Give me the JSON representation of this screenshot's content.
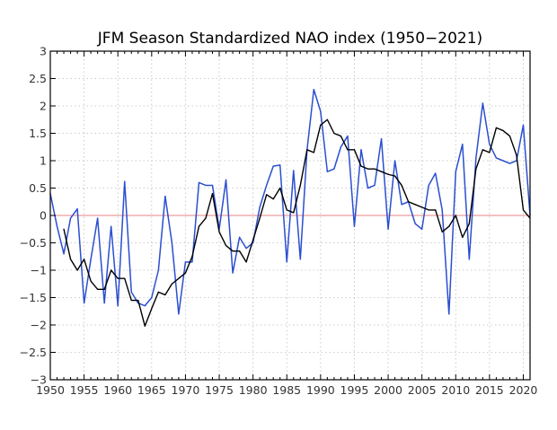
{
  "chart_data": {
    "type": "line",
    "title": "JFM Season Standardized NAO index (1950−2021)",
    "xlabel": "",
    "ylabel": "",
    "xlim": [
      1950,
      2021
    ],
    "ylim": [
      -3,
      3
    ],
    "grid": true,
    "x_ticks": [
      "1950",
      "1955",
      "1960",
      "1965",
      "1970",
      "1975",
      "1980",
      "1985",
      "1990",
      "1995",
      "2000",
      "2005",
      "2010",
      "2015",
      "2020"
    ],
    "y_ticks": [
      "3",
      "2.5",
      "2",
      "1.5",
      "1",
      "0.5",
      "0",
      "-0.5",
      "-1",
      "-1.5",
      "-2",
      "-2.5",
      "-3"
    ],
    "zero_line_color": "#e88080",
    "series": [
      {
        "name": "",
        "color": "#2a4fd0",
        "x": [
          1950,
          1951,
          1952,
          1953,
          1954,
          1955,
          1956,
          1957,
          1958,
          1959,
          1960,
          1961,
          1962,
          1963,
          1964,
          1965,
          1966,
          1967,
          1968,
          1969,
          1970,
          1971,
          1972,
          1973,
          1974,
          1975,
          1976,
          1977,
          1978,
          1979,
          1980,
          1981,
          1982,
          1983,
          1984,
          1985,
          1986,
          1987,
          1988,
          1989,
          1990,
          1991,
          1992,
          1993,
          1994,
          1995,
          1996,
          1997,
          1998,
          1999,
          2000,
          2001,
          2002,
          2003,
          2004,
          2005,
          2006,
          2007,
          2008,
          2009,
          2010,
          2011,
          2012,
          2013,
          2014,
          2015,
          2016,
          2017,
          2018,
          2019,
          2020,
          2021
        ],
        "values": [
          0.4,
          -0.2,
          -0.7,
          -0.05,
          0.12,
          -1.6,
          -0.8,
          -0.05,
          -1.6,
          -0.2,
          -1.65,
          0.62,
          -1.4,
          -1.6,
          -1.65,
          -1.5,
          -1.0,
          0.35,
          -0.5,
          -1.8,
          -0.85,
          -0.85,
          0.6,
          0.55,
          0.55,
          -0.25,
          0.65,
          -1.05,
          -0.4,
          -0.6,
          -0.5,
          0.15,
          0.55,
          0.9,
          0.92,
          -0.85,
          0.82,
          -0.8,
          1.2,
          2.3,
          1.9,
          0.8,
          0.85,
          1.25,
          1.45,
          -0.2,
          1.2,
          0.5,
          0.55,
          1.4,
          -0.25,
          1.0,
          0.2,
          0.25,
          -0.15,
          -0.25,
          0.55,
          0.77,
          0.1,
          -1.8,
          0.8,
          1.3,
          -0.8,
          1.05,
          2.05,
          1.3,
          1.05,
          1.0,
          0.95,
          1.0,
          1.65,
          0.0
        ]
      },
      {
        "name": "",
        "color": "#000000",
        "x": [
          1952,
          1953,
          1954,
          1955,
          1956,
          1957,
          1958,
          1959,
          1960,
          1961,
          1962,
          1963,
          1964,
          1965,
          1966,
          1967,
          1968,
          1969,
          1970,
          1971,
          1972,
          1973,
          1974,
          1975,
          1976,
          1977,
          1978,
          1979,
          1980,
          1981,
          1982,
          1983,
          1984,
          1985,
          1986,
          1987,
          1988,
          1989,
          1990,
          1991,
          1992,
          1993,
          1994,
          1995,
          1996,
          1997,
          1998,
          1999,
          2000,
          2001,
          2002,
          2003,
          2004,
          2005,
          2006,
          2007,
          2008,
          2009,
          2010,
          2011,
          2012,
          2013,
          2014,
          2015,
          2016,
          2017,
          2018,
          2019,
          2020,
          2021
        ],
        "values": [
          -0.25,
          -0.8,
          -1.0,
          -0.8,
          -1.2,
          -1.35,
          -1.35,
          -1.0,
          -1.15,
          -1.15,
          -1.55,
          -1.55,
          -2.02,
          -1.7,
          -1.4,
          -1.45,
          -1.25,
          -1.15,
          -1.05,
          -0.75,
          -0.2,
          -0.05,
          0.4,
          -0.3,
          -0.55,
          -0.65,
          -0.65,
          -0.85,
          -0.45,
          -0.05,
          0.38,
          0.3,
          0.5,
          0.1,
          0.05,
          0.55,
          1.2,
          1.15,
          1.65,
          1.75,
          1.5,
          1.45,
          1.2,
          1.2,
          0.9,
          0.85,
          0.85,
          0.8,
          0.75,
          0.72,
          0.55,
          0.25,
          0.2,
          0.15,
          0.1,
          0.1,
          -0.3,
          -0.2,
          0.0,
          -0.4,
          -0.15,
          0.85,
          1.2,
          1.15,
          1.6,
          1.55,
          1.45,
          1.1,
          0.1,
          -0.05
        ]
      }
    ]
  }
}
